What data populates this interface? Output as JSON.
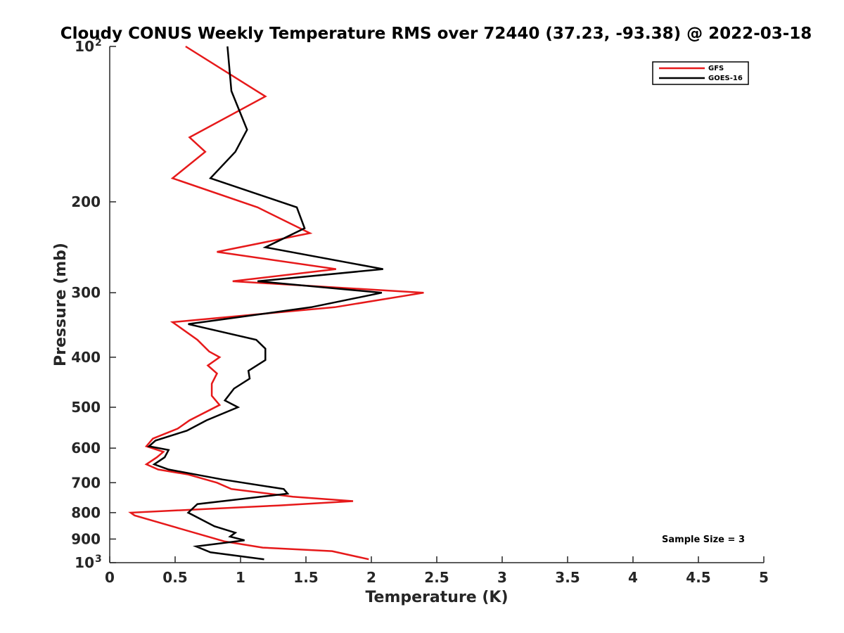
{
  "chart_data": {
    "type": "line",
    "title": "Cloudy CONUS Weekly Temperature RMS over 72440 (37.23, -93.38) @ 2022-03-18",
    "xlabel": "Temperature (K)",
    "ylabel": "Pressure (mb)",
    "xlim": [
      0,
      5
    ],
    "ylim": [
      100,
      1000
    ],
    "yscale": "log",
    "y_reversed": true,
    "grid": false,
    "legend_position": "top-right",
    "x_ticks": [
      "0",
      "0.5",
      "1",
      "1.5",
      "2",
      "2.5",
      "3",
      "3.5",
      "4",
      "4.5",
      "5"
    ],
    "y_ticks": [
      {
        "value": 100,
        "label": "10",
        "exp": "2"
      },
      {
        "value": 200,
        "label": "200",
        "exp": ""
      },
      {
        "value": 300,
        "label": "300",
        "exp": ""
      },
      {
        "value": 400,
        "label": "400",
        "exp": ""
      },
      {
        "value": 500,
        "label": "500",
        "exp": ""
      },
      {
        "value": 600,
        "label": "600",
        "exp": ""
      },
      {
        "value": 700,
        "label": "700",
        "exp": ""
      },
      {
        "value": 800,
        "label": "800",
        "exp": ""
      },
      {
        "value": 900,
        "label": "900",
        "exp": ""
      },
      {
        "value": 1000,
        "label": "10",
        "exp": "3"
      }
    ],
    "series": [
      {
        "name": "GFS",
        "color": "#e6191a",
        "points": [
          [
            0.58,
            100
          ],
          [
            1.19,
            125
          ],
          [
            0.61,
            150
          ],
          [
            0.73,
            160
          ],
          [
            0.48,
            180
          ],
          [
            1.13,
            205
          ],
          [
            1.53,
            230
          ],
          [
            0.82,
            250
          ],
          [
            1.73,
            270
          ],
          [
            0.94,
            285
          ],
          [
            2.4,
            300
          ],
          [
            1.72,
            320
          ],
          [
            0.48,
            342
          ],
          [
            0.67,
            370
          ],
          [
            0.76,
            390
          ],
          [
            0.84,
            400
          ],
          [
            0.75,
            415
          ],
          [
            0.82,
            430
          ],
          [
            0.78,
            450
          ],
          [
            0.78,
            475
          ],
          [
            0.84,
            495
          ],
          [
            0.61,
            530
          ],
          [
            0.52,
            550
          ],
          [
            0.33,
            575
          ],
          [
            0.28,
            595
          ],
          [
            0.41,
            610
          ],
          [
            0.36,
            625
          ],
          [
            0.28,
            645
          ],
          [
            0.37,
            660
          ],
          [
            0.6,
            675
          ],
          [
            0.82,
            700
          ],
          [
            0.93,
            720
          ],
          [
            1.4,
            745
          ],
          [
            1.86,
            760
          ],
          [
            1.29,
            775
          ],
          [
            0.16,
            800
          ],
          [
            0.19,
            810
          ],
          [
            0.51,
            855
          ],
          [
            0.88,
            910
          ],
          [
            1.17,
            935
          ],
          [
            1.7,
            950
          ],
          [
            1.98,
            985
          ]
        ]
      },
      {
        "name": "GOES-16",
        "color": "#000000",
        "points": [
          [
            0.9,
            100
          ],
          [
            0.93,
            122
          ],
          [
            1.05,
            145
          ],
          [
            0.96,
            160
          ],
          [
            0.77,
            180
          ],
          [
            1.43,
            205
          ],
          [
            1.49,
            225
          ],
          [
            1.19,
            245
          ],
          [
            2.09,
            270
          ],
          [
            1.13,
            285
          ],
          [
            2.08,
            300
          ],
          [
            1.54,
            320
          ],
          [
            0.6,
            345
          ],
          [
            1.12,
            370
          ],
          [
            1.19,
            385
          ],
          [
            1.19,
            405
          ],
          [
            1.06,
            425
          ],
          [
            1.07,
            440
          ],
          [
            0.95,
            460
          ],
          [
            0.88,
            485
          ],
          [
            0.98,
            500
          ],
          [
            0.74,
            530
          ],
          [
            0.59,
            555
          ],
          [
            0.35,
            580
          ],
          [
            0.3,
            595
          ],
          [
            0.45,
            605
          ],
          [
            0.42,
            625
          ],
          [
            0.34,
            645
          ],
          [
            0.45,
            660
          ],
          [
            0.86,
            690
          ],
          [
            1.33,
            720
          ],
          [
            1.36,
            735
          ],
          [
            0.67,
            770
          ],
          [
            0.6,
            800
          ],
          [
            0.8,
            850
          ],
          [
            0.96,
            875
          ],
          [
            0.92,
            890
          ],
          [
            1.03,
            905
          ],
          [
            0.66,
            930
          ],
          [
            0.77,
            955
          ],
          [
            1.18,
            985
          ]
        ]
      }
    ],
    "annotation": "Sample Size = 3"
  }
}
